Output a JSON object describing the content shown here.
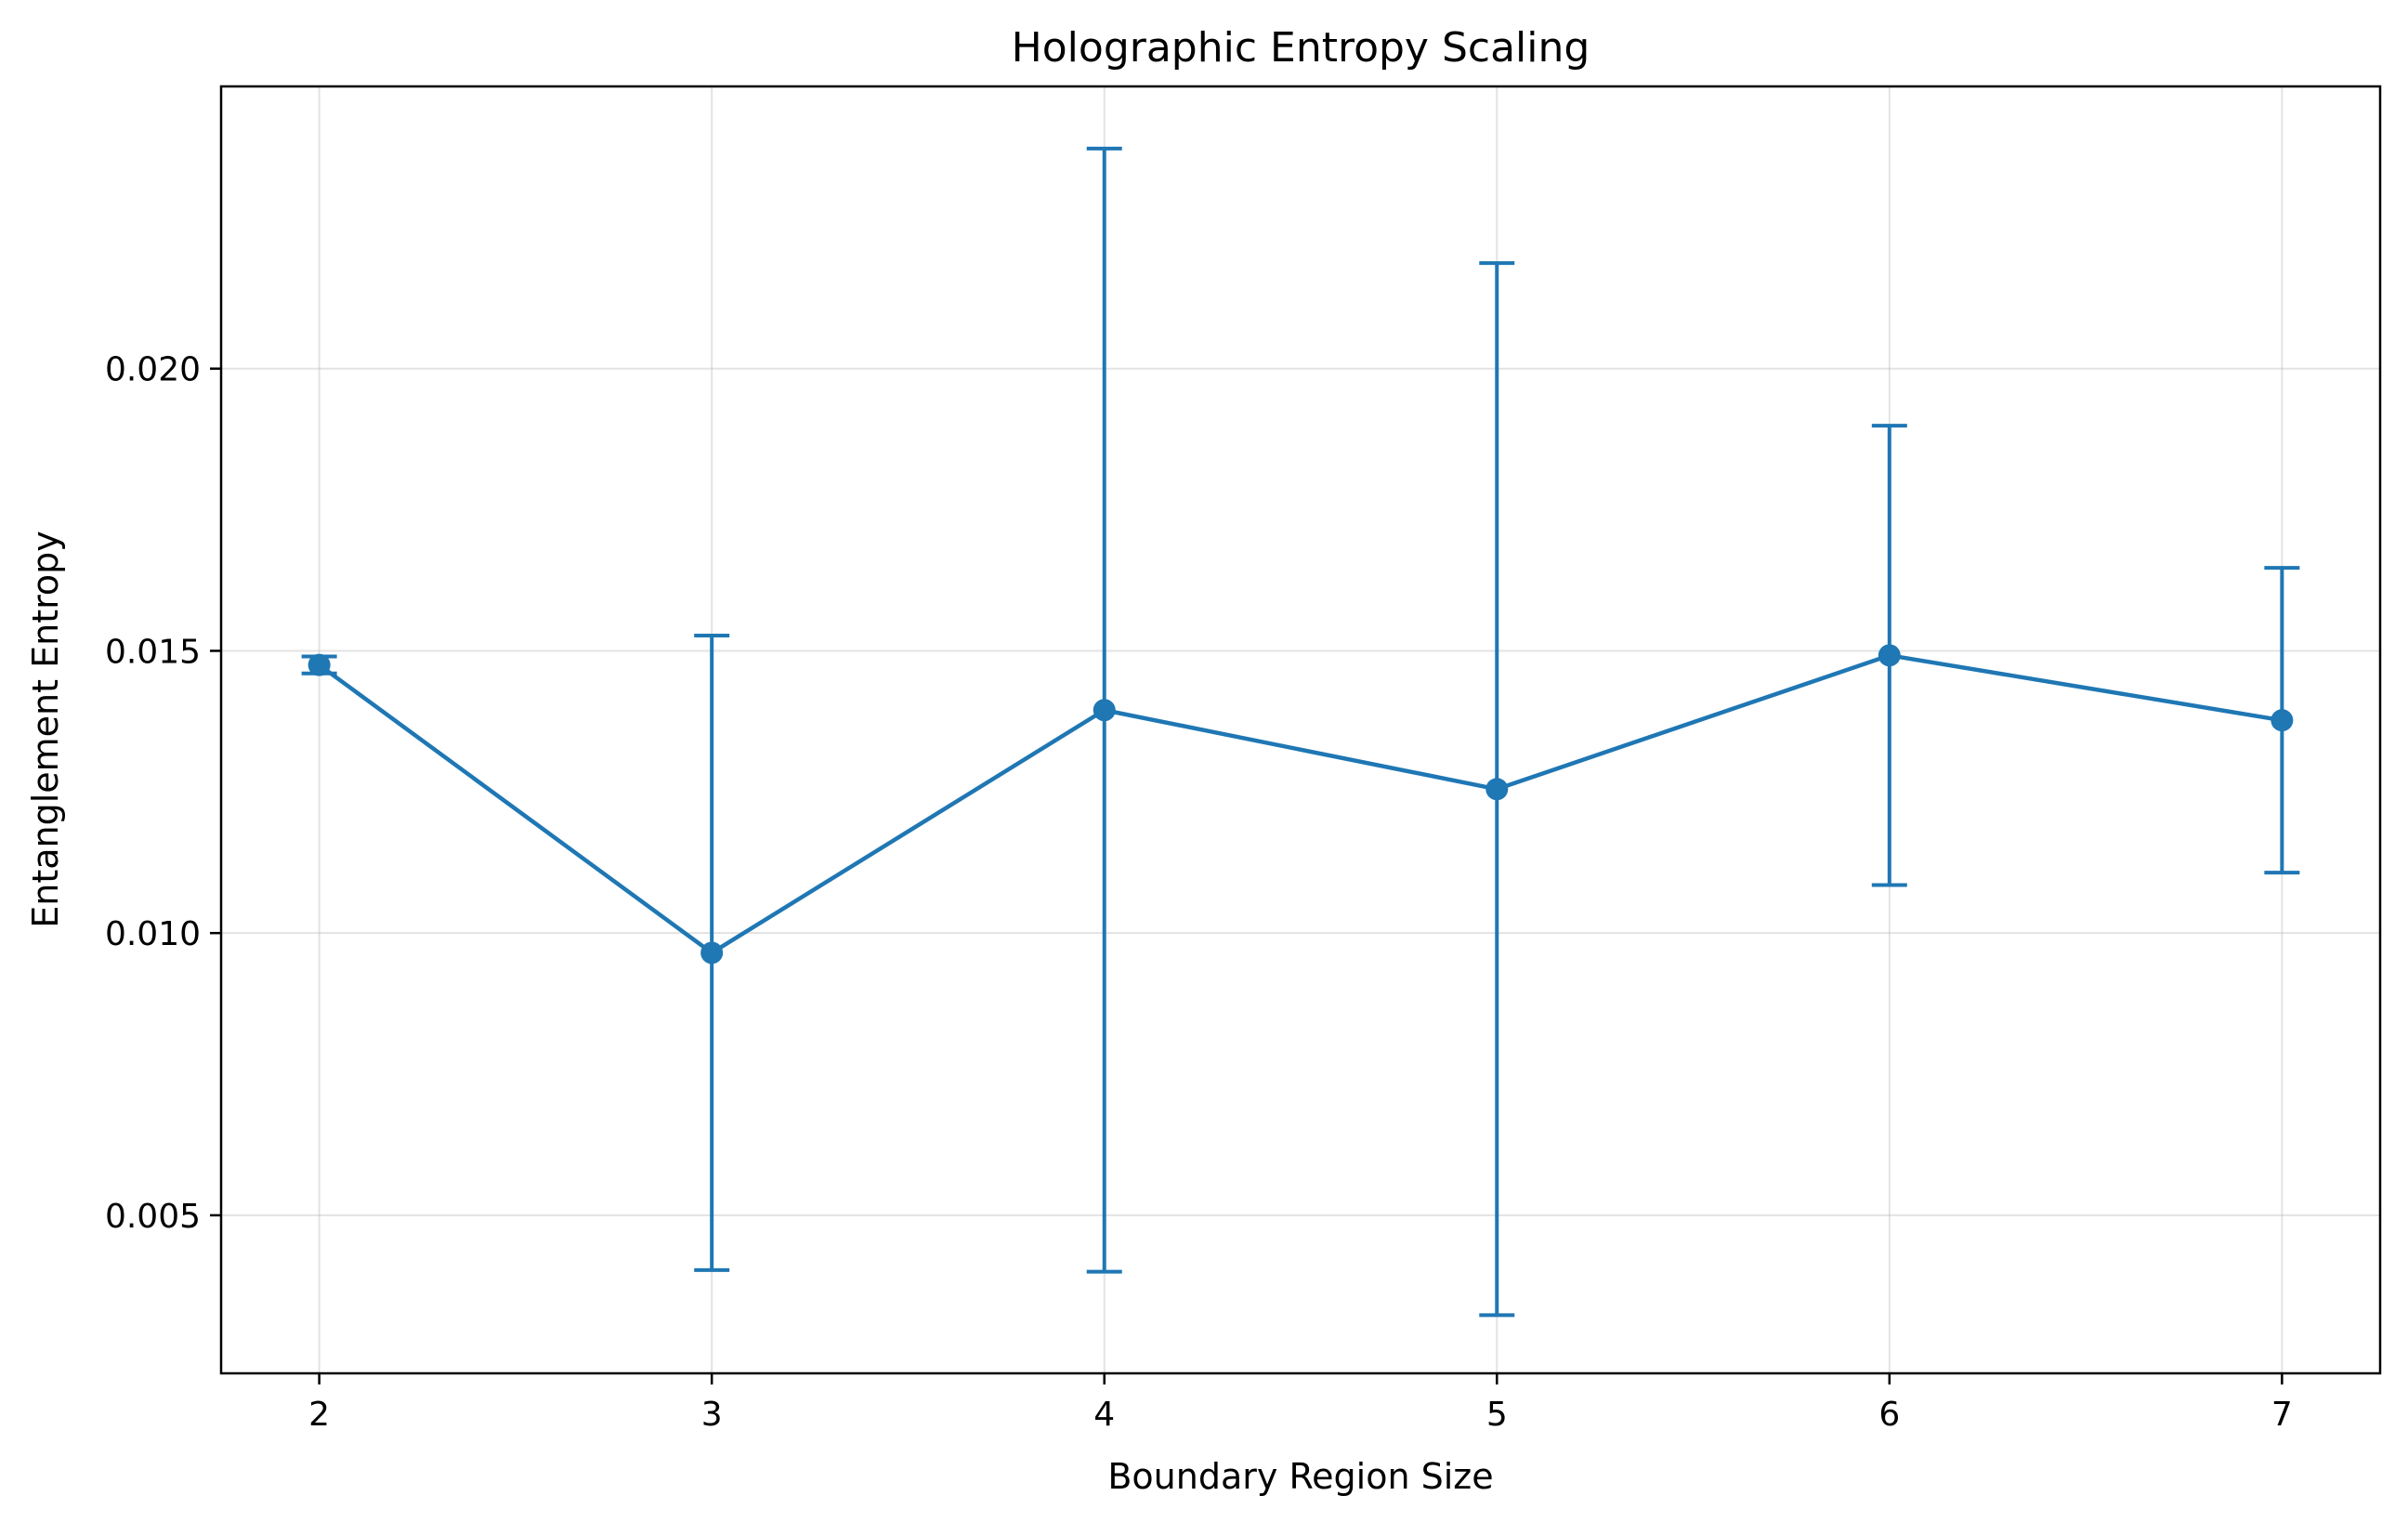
{
  "chart_data": {
    "type": "line",
    "title": "Holographic Entropy Scaling",
    "xlabel": "Boundary Region Size",
    "ylabel": "Entanglement Entropy",
    "xlim": [
      1.75,
      7.25
    ],
    "ylim": [
      0.0022,
      0.025
    ],
    "xticks": [
      2,
      3,
      4,
      5,
      6,
      7
    ],
    "xtick_labels": [
      "2",
      "3",
      "4",
      "5",
      "6",
      "7"
    ],
    "yticks": [
      0.005,
      0.01,
      0.015,
      0.02
    ],
    "ytick_labels": [
      "0.005",
      "0.010",
      "0.015",
      "0.020"
    ],
    "grid": true,
    "series": [
      {
        "color": "#1f77b4",
        "marker": "circle",
        "x": [
          2,
          3,
          4,
          5,
          6,
          7
        ],
        "y": [
          0.01475,
          0.00965,
          0.01395,
          0.01255,
          0.01492,
          0.01377
        ],
        "yerr": [
          0.00015,
          0.00562,
          0.00995,
          0.00932,
          0.00407,
          0.0027
        ]
      }
    ]
  }
}
